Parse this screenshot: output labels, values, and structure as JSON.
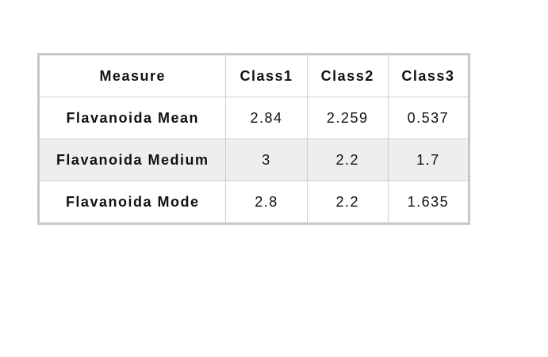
{
  "table": {
    "headers": [
      "Measure",
      "Class1",
      "Class2",
      "Class3"
    ],
    "rows": [
      {
        "label": "Flavanoida Mean",
        "values": [
          "2.84",
          "2.259",
          "0.537"
        ]
      },
      {
        "label": "Flavanoida Medium",
        "values": [
          "3",
          "2.2",
          "1.7"
        ]
      },
      {
        "label": "Flavanoida Mode",
        "values": [
          "2.8",
          "2.2",
          "1.635"
        ]
      }
    ],
    "shaded_row_color": "#eeeeee",
    "border_color": "#c8c8c8"
  }
}
